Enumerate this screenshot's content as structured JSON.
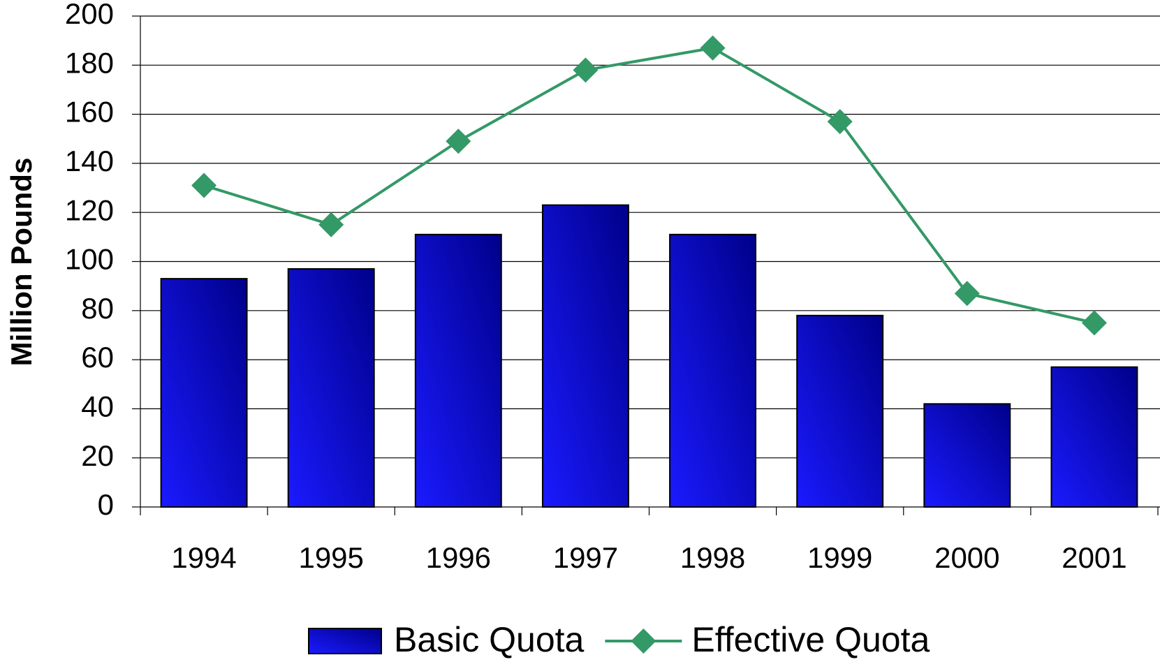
{
  "chart_data": {
    "type": "bar_line",
    "y_label": "Million Pounds",
    "categories": [
      "1994",
      "1995",
      "1996",
      "1997",
      "1998",
      "1999",
      "2000",
      "2001"
    ],
    "series": [
      {
        "name": "Basic Quota",
        "type": "bar",
        "color": "#0a0ae0",
        "values": [
          93,
          97,
          111,
          123,
          111,
          78,
          42,
          57
        ]
      },
      {
        "name": "Effective Quota",
        "type": "line",
        "color": "#339966",
        "values": [
          131,
          115,
          149,
          178,
          187,
          157,
          87,
          75
        ]
      }
    ],
    "ylim": [
      0,
      200
    ],
    "yticks": [
      0,
      20,
      40,
      60,
      80,
      100,
      120,
      140,
      160,
      180,
      200
    ],
    "grid": true,
    "legend": "bottom"
  }
}
